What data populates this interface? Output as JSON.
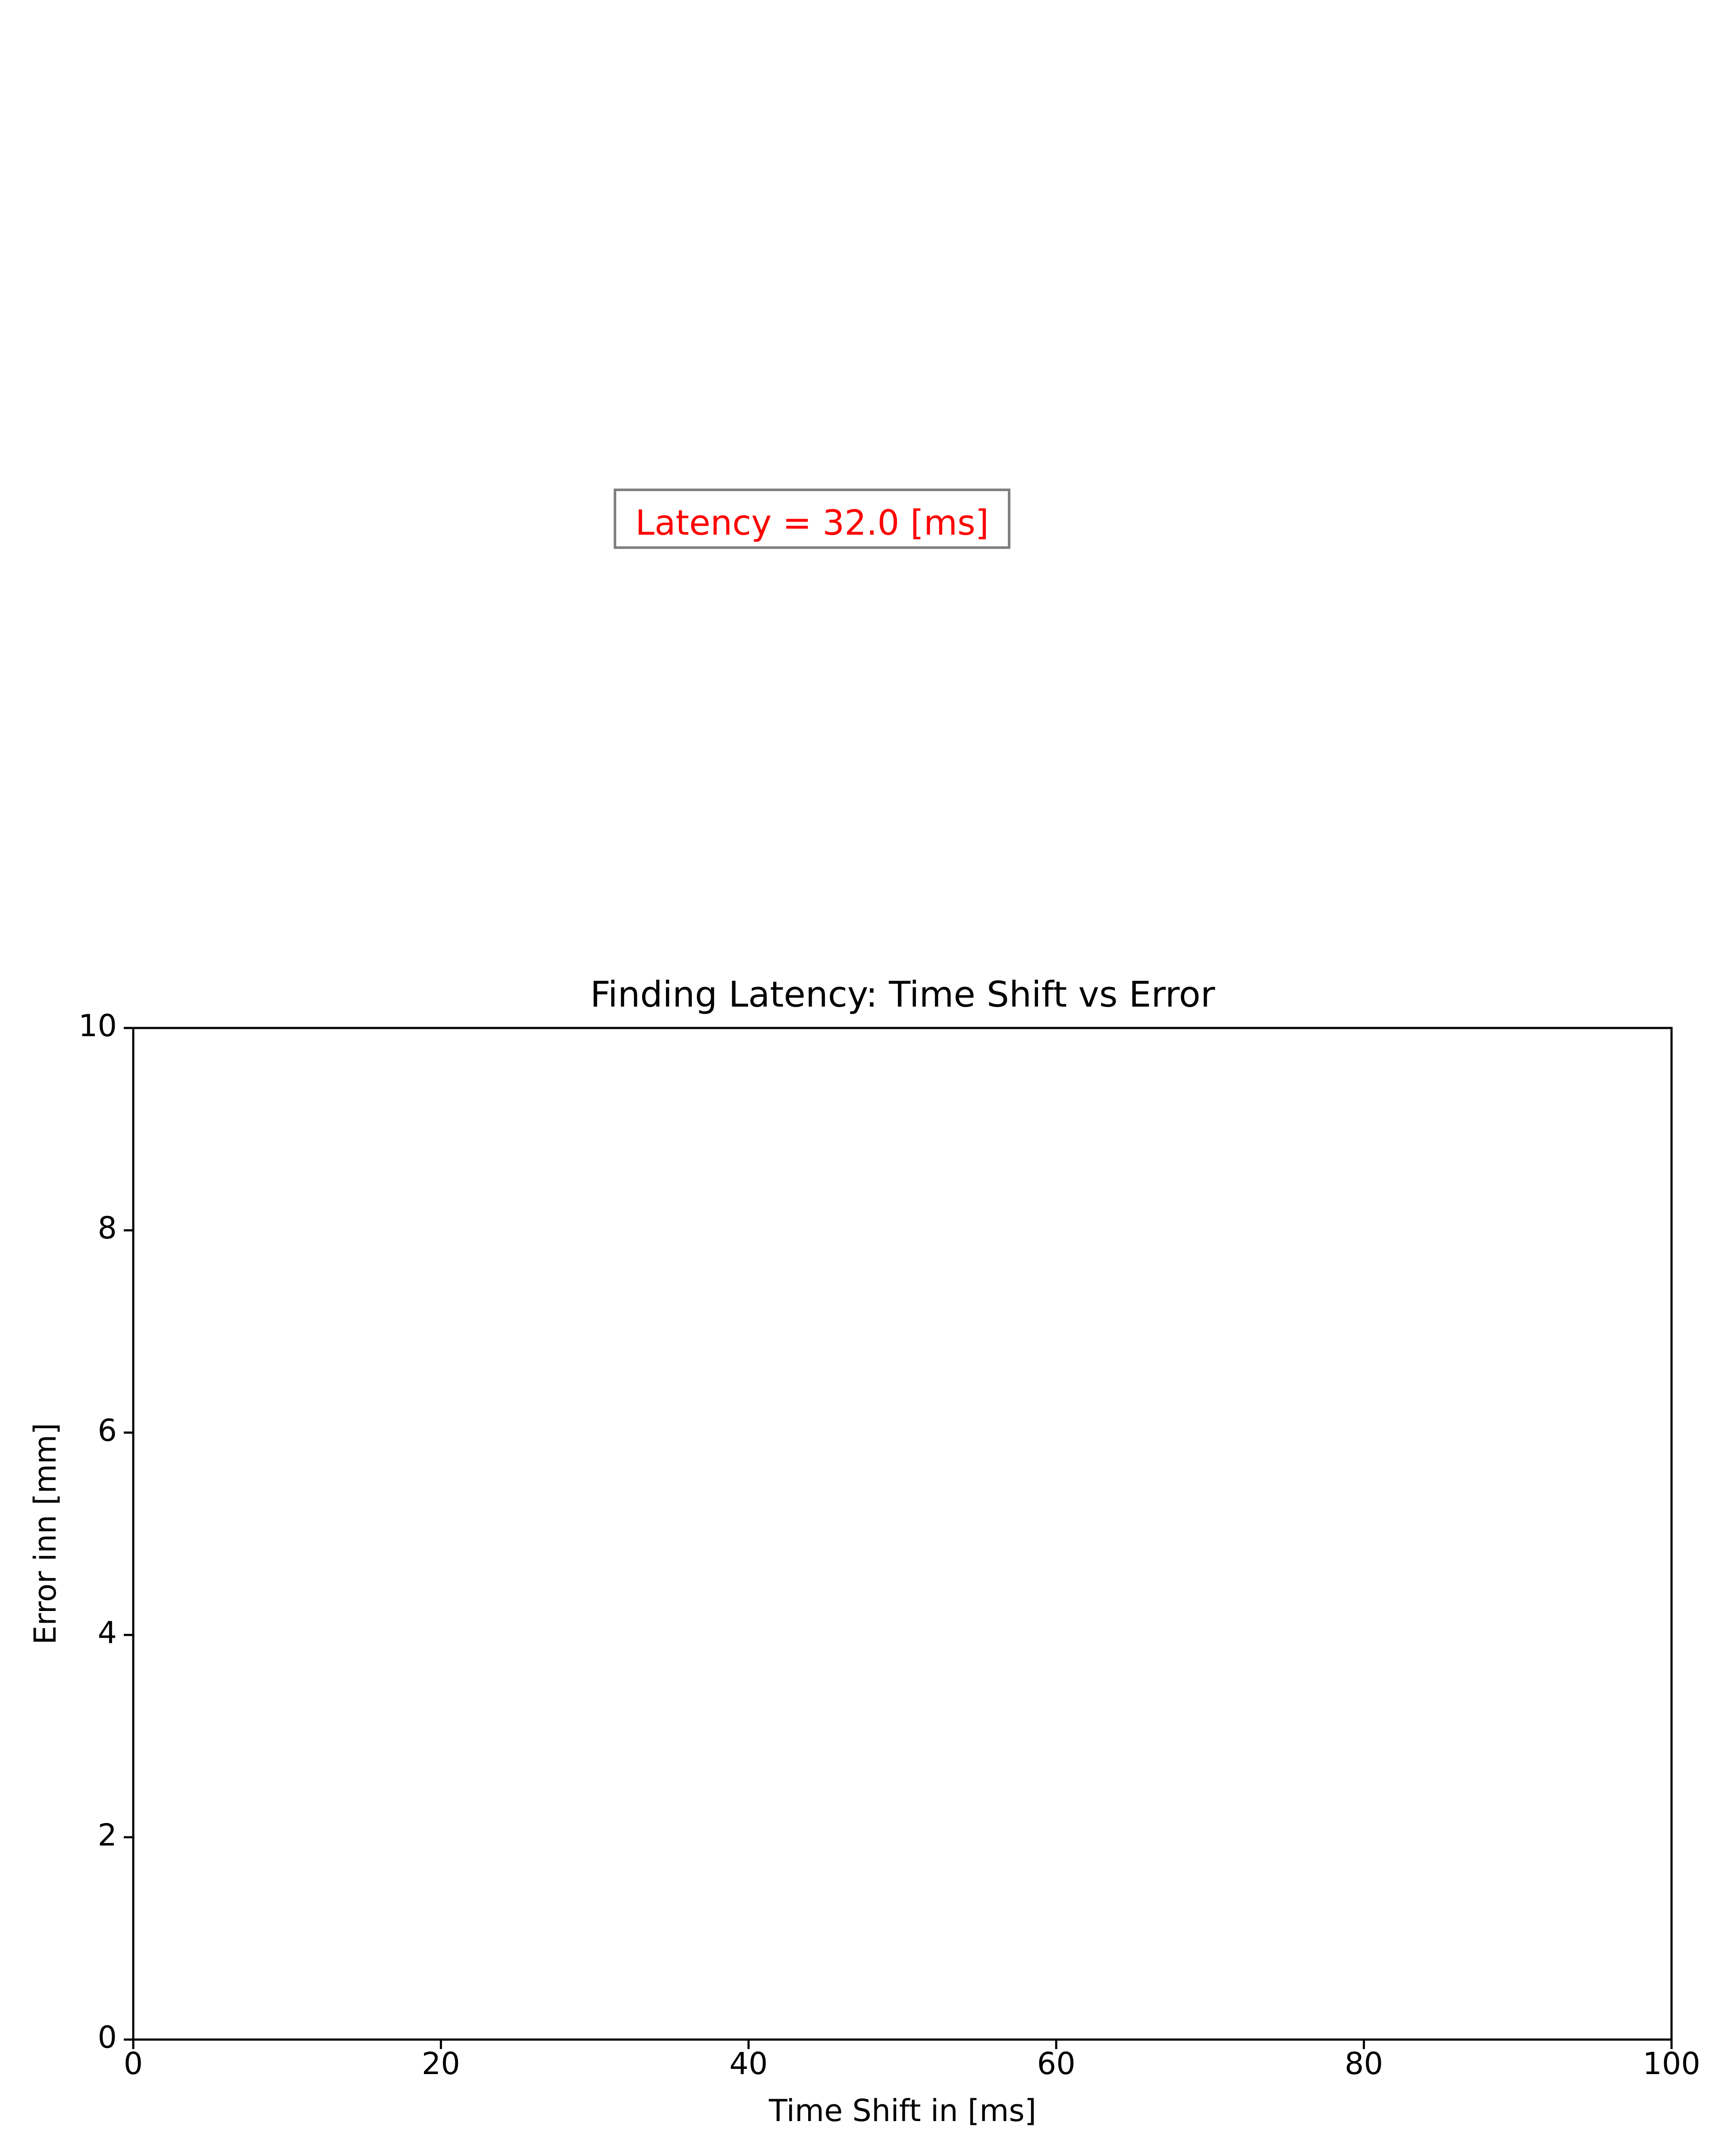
{
  "chart_data": {
    "type": "line",
    "title": "Finding Latency: Time Shift vs Error",
    "xlabel": "Time Shift in [ms]",
    "ylabel": "Error inn [mm]",
    "xlim": [
      0,
      100
    ],
    "ylim": [
      0,
      10
    ],
    "xticks": [
      0,
      20,
      40,
      60,
      80,
      100
    ],
    "yticks": [
      0,
      2,
      4,
      6,
      8,
      10
    ],
    "grid": false,
    "series": [],
    "annotation": {
      "text": "Latency = 32.0 [ms]",
      "color": "#ff0000",
      "box_edge_color": "#808080"
    }
  }
}
